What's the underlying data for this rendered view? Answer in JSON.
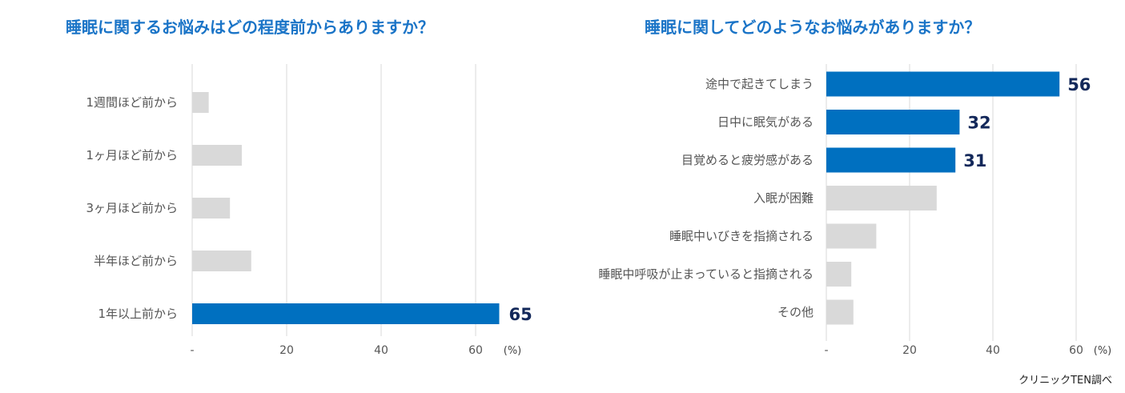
{
  "chart_data": [
    {
      "type": "bar",
      "orientation": "horizontal",
      "title": "睡眠に関するお悩みはどの程度前からありますか？",
      "categories": [
        "1週間ほど前から",
        "1ヶ月ほど前から",
        "3ヶ月ほど前から",
        "半年ほど前から",
        "1年以上前から"
      ],
      "values": [
        3.5,
        10.5,
        8,
        12.5,
        65
      ],
      "highlight": [
        false,
        false,
        false,
        false,
        true
      ],
      "data_labels": [
        "",
        "",
        "",
        "",
        "65"
      ],
      "xticks": [
        "-",
        "20",
        "40",
        "60"
      ],
      "xlim": [
        0,
        70
      ],
      "unit": "(%)",
      "grid": "vertical"
    },
    {
      "type": "bar",
      "orientation": "horizontal",
      "title": "睡眠に関してどのようなお悩みがありますか？",
      "categories": [
        "途中で起きてしまう",
        "日中に眠気がある",
        "目覚めると疲労感がある",
        "入眠が困難",
        "睡眠中いびきを指摘される",
        "睡眠中呼吸が止まっていると指摘される",
        "その他"
      ],
      "values": [
        56,
        32,
        31,
        26.5,
        12,
        6,
        6.5
      ],
      "highlight": [
        true,
        true,
        true,
        false,
        false,
        false,
        false
      ],
      "data_labels": [
        "56",
        "32",
        "31",
        "",
        "",
        "",
        ""
      ],
      "xticks": [
        "-",
        "20",
        "40",
        "60"
      ],
      "xlim": [
        0,
        70
      ],
      "unit": "(%)",
      "grid": "vertical"
    }
  ],
  "colors": {
    "highlight": "#0070c0",
    "muted": "#d9d9d9",
    "grid": "#d9d9d9",
    "title": "#1a74c7",
    "data_label": "#13285a"
  },
  "source": "クリニックTEN調べ"
}
